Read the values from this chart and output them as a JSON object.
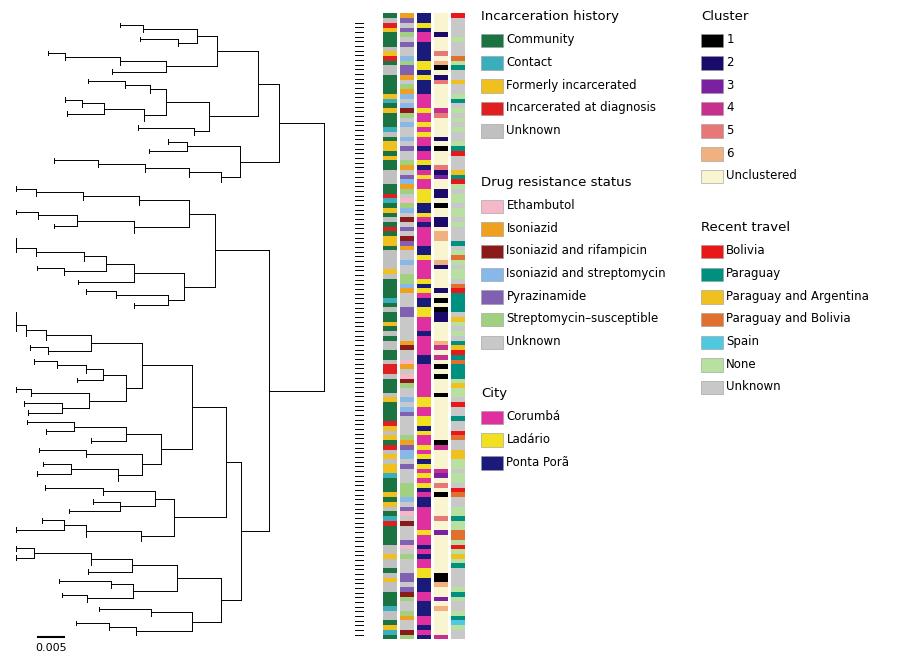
{
  "n_isolates": 132,
  "incarceration_colors": {
    "community": "#1a7340",
    "contact": "#3aaebc",
    "formerly_incarcerated": "#f0c020",
    "incarcerated_at_diagnosis": "#e02020",
    "unknown": "#c0c0c0"
  },
  "drug_resistance_colors": {
    "ethambutol": "#f4b8c8",
    "isoniazid": "#f0a020",
    "isoniazid_rifampicin": "#8b1a1a",
    "isoniazid_streptomycin": "#88b8e8",
    "pyrazinamide": "#8060b0",
    "streptomycin_susceptible": "#a0d080",
    "unknown": "#c8c8c8"
  },
  "city_colors": {
    "corumba": "#e030a0",
    "ladario": "#f0e020",
    "ponta_pora": "#1a1a7a"
  },
  "cluster_colors": {
    "1": "#000000",
    "2": "#1a0a6a",
    "3": "#7a20a0",
    "4": "#c83090",
    "5": "#e87878",
    "6": "#f0b080",
    "unclustered": "#f8f5d0"
  },
  "travel_colors": {
    "bolivia": "#e81818",
    "paraguay": "#009080",
    "paraguay_argentina": "#f0c020",
    "paraguay_bolivia": "#e07030",
    "spain": "#50c8e0",
    "none": "#b8e0a0",
    "unknown": "#c8c8c8"
  },
  "legend_incarceration": {
    "title": "Incarceration history",
    "items": [
      [
        "Community",
        "#1a7340"
      ],
      [
        "Contact",
        "#3aaebc"
      ],
      [
        "Formerly incarcerated",
        "#f0c020"
      ],
      [
        "Incarcerated at diagnosis",
        "#e02020"
      ],
      [
        "Unknown",
        "#c0c0c0"
      ]
    ]
  },
  "legend_drug": {
    "title": "Drug resistance status",
    "items": [
      [
        "Ethambutol",
        "#f4b8c8"
      ],
      [
        "Isoniazid",
        "#f0a020"
      ],
      [
        "Isoniazid and rifampicin",
        "#8b1a1a"
      ],
      [
        "Isoniazid and streptomycin",
        "#88b8e8"
      ],
      [
        "Pyrazinamide",
        "#8060b0"
      ],
      [
        "Streptomycin–susceptible",
        "#a0d080"
      ],
      [
        "Unknown",
        "#c8c8c8"
      ]
    ]
  },
  "legend_city": {
    "title": "City",
    "items": [
      [
        "Corumbá",
        "#e030a0"
      ],
      [
        "Ladário",
        "#f0e020"
      ],
      [
        "Ponta Porã",
        "#1a1a7a"
      ]
    ]
  },
  "legend_cluster": {
    "title": "Cluster",
    "items": [
      [
        "1",
        "#000000"
      ],
      [
        "2",
        "#1a0a6a"
      ],
      [
        "3",
        "#7a20a0"
      ],
      [
        "4",
        "#c83090"
      ],
      [
        "5",
        "#e87878"
      ],
      [
        "6",
        "#f0b080"
      ],
      [
        "Unclustered",
        "#f8f5d0"
      ]
    ]
  },
  "legend_travel": {
    "title": "Recent travel",
    "items": [
      [
        "Bolivia",
        "#e81818"
      ],
      [
        "Paraguay",
        "#009080"
      ],
      [
        "Paraguay and Argentina",
        "#f0c020"
      ],
      [
        "Paraguay and Bolivia",
        "#e07030"
      ],
      [
        "Spain",
        "#50c8e0"
      ],
      [
        "None",
        "#b8e0a0"
      ],
      [
        "Unknown",
        "#c8c8c8"
      ]
    ]
  },
  "scale_bar_value": 0.005,
  "scale_bar_label": "0.005"
}
